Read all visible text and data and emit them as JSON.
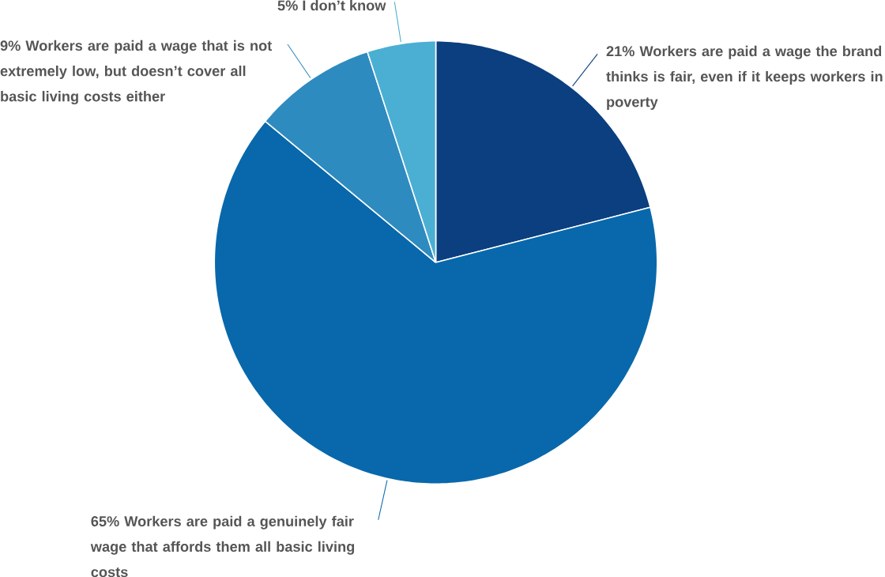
{
  "chart_data": {
    "type": "pie",
    "categories": [
      "21% Workers are paid a wage the brand thinks is fair, even if it keeps workers in poverty",
      "65% Workers are paid a genuinely fair wage that affords them all basic living costs",
      "9% Workers are paid a wage that is not extremely low, but doesn’t cover all basic living costs either",
      "5% I don’t know"
    ],
    "values": [
      21,
      65,
      9,
      5
    ],
    "colors": [
      "#0b3f7f",
      "#0868ab",
      "#2e8bbf",
      "#4bafd3"
    ]
  }
}
